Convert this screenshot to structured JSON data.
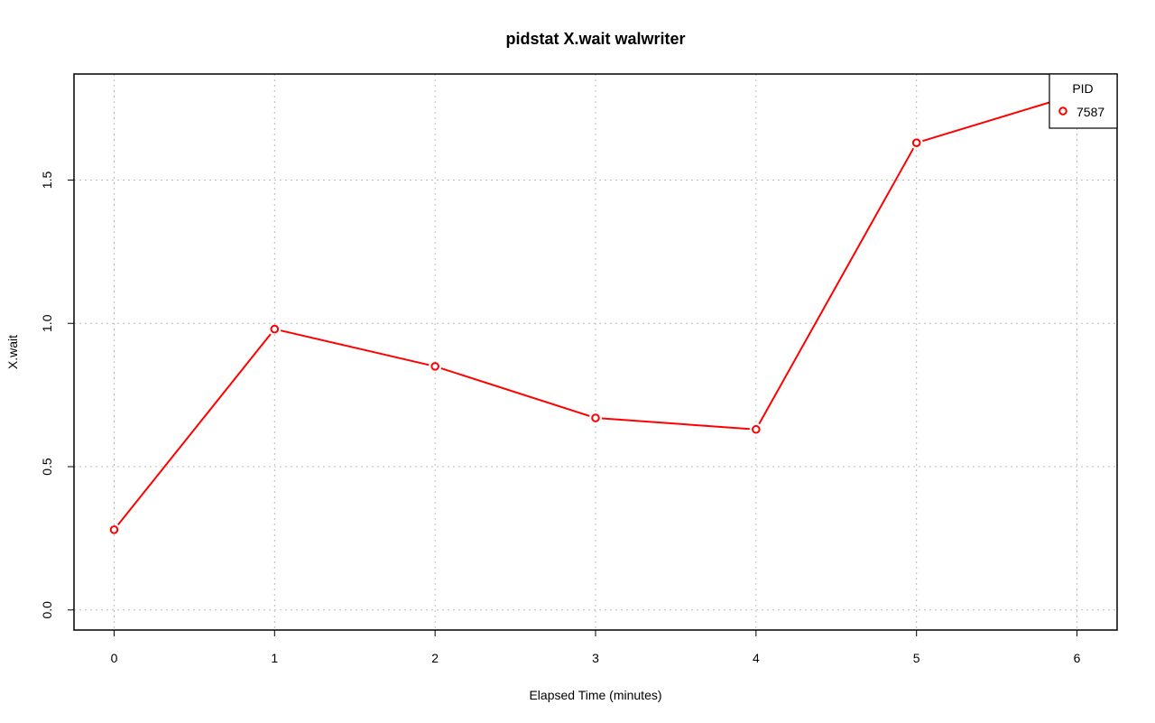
{
  "chart_data": {
    "type": "line",
    "title": "pidstat X.wait walwriter",
    "xlabel": "Elapsed Time (minutes)",
    "ylabel": "X.wait",
    "xlim": [
      -0.25,
      6.25
    ],
    "ylim": [
      -0.07,
      1.87
    ],
    "x_ticks": [
      0,
      1,
      2,
      3,
      4,
      5,
      6
    ],
    "y_ticks": [
      0.0,
      0.5,
      1.0,
      1.5
    ],
    "y_tick_labels": [
      "0.0",
      "0.5",
      "1.0",
      "1.5"
    ],
    "grid": true,
    "legend": {
      "title": "PID",
      "placement": "top-right"
    },
    "series": [
      {
        "name": "7587",
        "color": "#ff0000",
        "marker": "open-circle",
        "x": [
          0,
          1,
          2,
          3,
          4,
          5,
          6
        ],
        "y": [
          0.28,
          0.98,
          0.85,
          0.67,
          0.63,
          1.63,
          1.8
        ]
      }
    ]
  }
}
